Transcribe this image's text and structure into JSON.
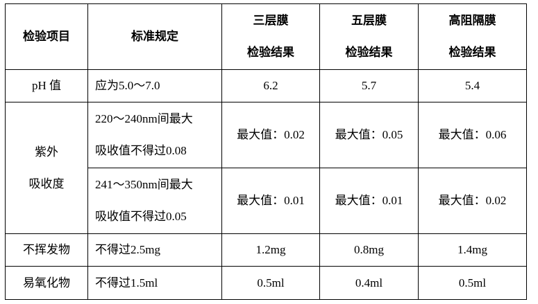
{
  "header": {
    "item": "检验项目",
    "standard": "标准规定",
    "col1": [
      "三层膜",
      "检验结果"
    ],
    "col2": [
      "五层膜",
      "检验结果"
    ],
    "col3": [
      "高阻隔膜",
      "检验结果"
    ]
  },
  "rows": {
    "ph": {
      "item": "pH 值",
      "standard": "应为5.0～7.0",
      "results": [
        "6.2",
        "5.7",
        "5.4"
      ]
    },
    "uv": {
      "item": [
        "紫外",
        "吸收度"
      ],
      "sub": [
        {
          "standard": [
            "220～240nm间最大",
            "吸收值不得过0.08"
          ],
          "results": [
            "最大值：0.02",
            "最大值：0.05",
            "最大值：0.06"
          ]
        },
        {
          "standard": [
            "241～350nm间最大",
            "吸收值不得过0.05"
          ],
          "results": [
            "最大值：0.01",
            "最大值：0.01",
            "最大值：0.02"
          ]
        }
      ]
    },
    "nonvolatile": {
      "item": "不挥发物",
      "standard": "不得过2.5mg",
      "results": [
        "1.2mg",
        "0.8mg",
        "1.4mg"
      ]
    },
    "oxidizable": {
      "item": "易氧化物",
      "standard": "不得过1.5ml",
      "results": [
        "0.5ml",
        "0.4ml",
        "0.5ml"
      ]
    }
  }
}
